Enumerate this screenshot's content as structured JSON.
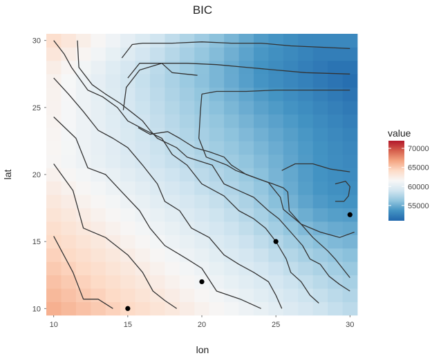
{
  "chart_data": {
    "type": "heatmap",
    "title": "BIC",
    "xlabel": "lon",
    "ylabel": "lat",
    "x_range": [
      9.5,
      30.5
    ],
    "y_range": [
      9.5,
      30.5
    ],
    "x_ticks": [
      10,
      15,
      20,
      25,
      30
    ],
    "y_ticks": [
      10,
      15,
      20,
      25,
      30
    ],
    "grid": true,
    "value_scale": {
      "name": "value",
      "min": 51000,
      "max": 72000,
      "ticks": [
        55000,
        60000,
        65000,
        70000
      ],
      "colors": [
        "#2166ac",
        "#4393c3",
        "#92c5de",
        "#d1e5f0",
        "#f7f7f7",
        "#fddbc7",
        "#f4a582",
        "#d6604d",
        "#b2182b"
      ]
    },
    "legend_position": "right",
    "points": [
      {
        "x": 15,
        "y": 10
      },
      {
        "x": 20,
        "y": 12
      },
      {
        "x": 25,
        "y": 15
      },
      {
        "x": 30,
        "y": 17
      }
    ],
    "contours": [
      [
        [
          10,
          15.4
        ],
        [
          11.3,
          12.7
        ],
        [
          12,
          10.7
        ],
        [
          13,
          10.7
        ],
        [
          14,
          10
        ]
      ],
      [
        [
          10,
          20.8
        ],
        [
          11.3,
          18.8
        ],
        [
          12,
          16
        ],
        [
          13.5,
          15.3
        ],
        [
          15,
          14
        ],
        [
          16,
          12.7
        ],
        [
          16.7,
          11.3
        ],
        [
          17.5,
          10.6
        ],
        [
          18.3,
          10
        ]
      ],
      [
        [
          10,
          24.3
        ],
        [
          11.5,
          22.7
        ],
        [
          12.3,
          20.5
        ],
        [
          13.5,
          20
        ],
        [
          14.6,
          18.7
        ],
        [
          15.8,
          17.3
        ],
        [
          16.5,
          16
        ],
        [
          17.5,
          14.7
        ],
        [
          19,
          13.7
        ],
        [
          20,
          13
        ],
        [
          21,
          11.3
        ],
        [
          22.6,
          10.7
        ],
        [
          24,
          10
        ]
      ],
      [
        [
          10,
          27.2
        ],
        [
          11,
          26
        ],
        [
          12,
          24.7
        ],
        [
          13,
          23.3
        ],
        [
          14,
          22.7
        ],
        [
          15,
          22
        ],
        [
          16,
          20.7
        ],
        [
          17,
          19.3
        ],
        [
          17.5,
          18
        ],
        [
          18.5,
          17.3
        ],
        [
          19.3,
          16
        ],
        [
          20.5,
          15.3
        ],
        [
          21.5,
          14
        ],
        [
          22.5,
          13.3
        ],
        [
          23.5,
          12.7
        ],
        [
          24.5,
          12
        ],
        [
          25,
          11
        ],
        [
          25.4,
          10
        ]
      ],
      [
        [
          10,
          30
        ],
        [
          10.7,
          29
        ],
        [
          11.2,
          28
        ],
        [
          12.3,
          26.3
        ],
        [
          13.3,
          25.8
        ],
        [
          14.3,
          25
        ],
        [
          15,
          24
        ],
        [
          16.2,
          23.3
        ],
        [
          17.3,
          22.7
        ],
        [
          18,
          21.5
        ],
        [
          19,
          20.7
        ],
        [
          20,
          19.3
        ],
        [
          21.5,
          18.4
        ],
        [
          22.5,
          17.3
        ],
        [
          23.5,
          16.7
        ],
        [
          24.3,
          16
        ],
        [
          25,
          15
        ],
        [
          25.7,
          13.7
        ],
        [
          26,
          12.7
        ],
        [
          26.7,
          12
        ],
        [
          27.3,
          11
        ],
        [
          27.9,
          10.4
        ]
      ],
      [
        [
          11.6,
          30
        ],
        [
          11.7,
          28
        ],
        [
          12.6,
          26.7
        ],
        [
          13.5,
          26
        ],
        [
          14.5,
          25.3
        ],
        [
          15.2,
          24.7
        ],
        [
          16,
          24
        ],
        [
          16.5,
          23.3
        ],
        [
          17,
          22.7
        ],
        [
          18.3,
          22
        ],
        [
          19,
          21.3
        ],
        [
          20.7,
          20.7
        ],
        [
          21.5,
          19.3
        ],
        [
          22.7,
          18.7
        ],
        [
          23.5,
          18.3
        ],
        [
          24.5,
          17.3
        ],
        [
          25.2,
          16.7
        ],
        [
          26,
          15.7
        ],
        [
          26.8,
          14.7
        ],
        [
          27.3,
          13.7
        ],
        [
          28,
          13.3
        ],
        [
          28.6,
          12.4
        ],
        [
          29.3,
          11.8
        ],
        [
          30,
          11.3
        ]
      ],
      [
        [
          15.7,
          23.5
        ],
        [
          16.5,
          23
        ],
        [
          17.7,
          23.2
        ],
        [
          18.5,
          22.7
        ],
        [
          19.5,
          22
        ],
        [
          20.5,
          21.7
        ],
        [
          21.5,
          21.3
        ],
        [
          22,
          20.7
        ],
        [
          23,
          20
        ],
        [
          24,
          19.6
        ],
        [
          24.8,
          19.3
        ],
        [
          25.5,
          19
        ],
        [
          25.8,
          18.7
        ],
        [
          25.9,
          17.3
        ],
        [
          26.7,
          16.3
        ],
        [
          27.5,
          15.3
        ],
        [
          28.5,
          14.3
        ],
        [
          29,
          13.7
        ],
        [
          30,
          12.3
        ]
      ],
      [
        [
          14.6,
          28.7
        ],
        [
          15.3,
          29.7
        ],
        [
          16,
          29.8
        ],
        [
          18,
          29.8
        ],
        [
          20,
          29.9
        ],
        [
          22,
          29.8
        ],
        [
          24,
          29.8
        ],
        [
          26,
          29.6
        ],
        [
          28,
          29.5
        ],
        [
          30,
          29.4
        ]
      ],
      [
        [
          15,
          27.2
        ],
        [
          15.8,
          28.3
        ],
        [
          17,
          28.3
        ],
        [
          19,
          28.3
        ],
        [
          21,
          28.2
        ],
        [
          23,
          28
        ],
        [
          25,
          27.8
        ],
        [
          27,
          27.6
        ],
        [
          30,
          27.5
        ]
      ],
      [
        [
          14.7,
          24.8
        ],
        [
          14.9,
          26.5
        ],
        [
          15.8,
          27.8
        ],
        [
          17.3,
          28.3
        ],
        [
          18,
          27.6
        ],
        [
          19.7,
          27.4
        ]
      ],
      [
        [
          20,
          26
        ],
        [
          21,
          26.2
        ],
        [
          23,
          26.2
        ],
        [
          25,
          26.3
        ],
        [
          27,
          26.3
        ],
        [
          30,
          26.3
        ]
      ],
      [
        [
          20,
          26
        ],
        [
          19.9,
          24.7
        ],
        [
          19.8,
          22.7
        ],
        [
          20.3,
          21.3
        ],
        [
          21.7,
          20.7
        ],
        [
          22.3,
          20.3
        ],
        [
          24.5,
          19.4
        ],
        [
          25.3,
          18.3
        ],
        [
          25.5,
          17.4
        ],
        [
          26.7,
          16.3
        ],
        [
          28,
          15.7
        ],
        [
          29.3,
          15.3
        ],
        [
          30.3,
          15.7
        ]
      ],
      [
        [
          25.4,
          20.3
        ],
        [
          26.3,
          20.8
        ],
        [
          27.5,
          20.8
        ],
        [
          28.7,
          20.4
        ],
        [
          30,
          20.2
        ]
      ],
      [
        [
          29,
          19.3
        ],
        [
          29.7,
          19.5
        ],
        [
          30,
          19.1
        ],
        [
          29.9,
          18.4
        ],
        [
          29.6,
          18
        ],
        [
          29,
          18
        ]
      ]
    ]
  }
}
